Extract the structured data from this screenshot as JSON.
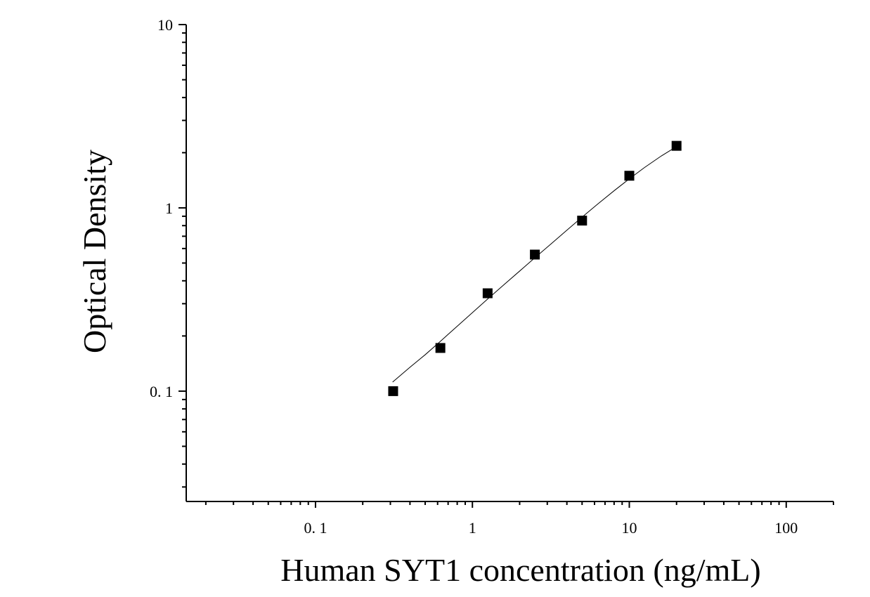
{
  "chart_data": {
    "type": "scatter",
    "title": "",
    "xlabel": "Human SYT1 concentration (ng/mL)",
    "ylabel": "Optical Density",
    "x_scale": "log",
    "y_scale": "log",
    "xlim": [
      0.015,
      200
    ],
    "ylim": [
      0.025,
      10
    ],
    "x_ticks": [
      {
        "value": 0.1,
        "label": "0. 1"
      },
      {
        "value": 1,
        "label": "1"
      },
      {
        "value": 10,
        "label": "10"
      },
      {
        "value": 100,
        "label": "100"
      }
    ],
    "y_ticks": [
      {
        "value": 0.1,
        "label": "0. 1"
      },
      {
        "value": 1,
        "label": "1"
      },
      {
        "value": 10,
        "label": "10"
      }
    ],
    "grid": false,
    "legend": "none",
    "series": [
      {
        "marker": "square",
        "color": "#000000",
        "x": [
          0.3125,
          0.625,
          1.25,
          2.5,
          5,
          10,
          20
        ],
        "y": [
          0.1,
          0.172,
          0.342,
          0.556,
          0.852,
          1.497,
          2.18
        ]
      }
    ],
    "fit_curve": {
      "color": "#000000",
      "x": [
        0.31,
        0.4,
        0.5,
        0.625,
        0.8,
        1,
        1.25,
        1.6,
        2,
        2.5,
        3.2,
        4,
        5,
        6.3,
        8,
        10,
        12.5,
        16,
        20
      ],
      "y": [
        0.112,
        0.135,
        0.158,
        0.187,
        0.226,
        0.268,
        0.318,
        0.383,
        0.452,
        0.534,
        0.64,
        0.755,
        0.89,
        1.05,
        1.24,
        1.44,
        1.66,
        1.92,
        2.16
      ]
    }
  }
}
